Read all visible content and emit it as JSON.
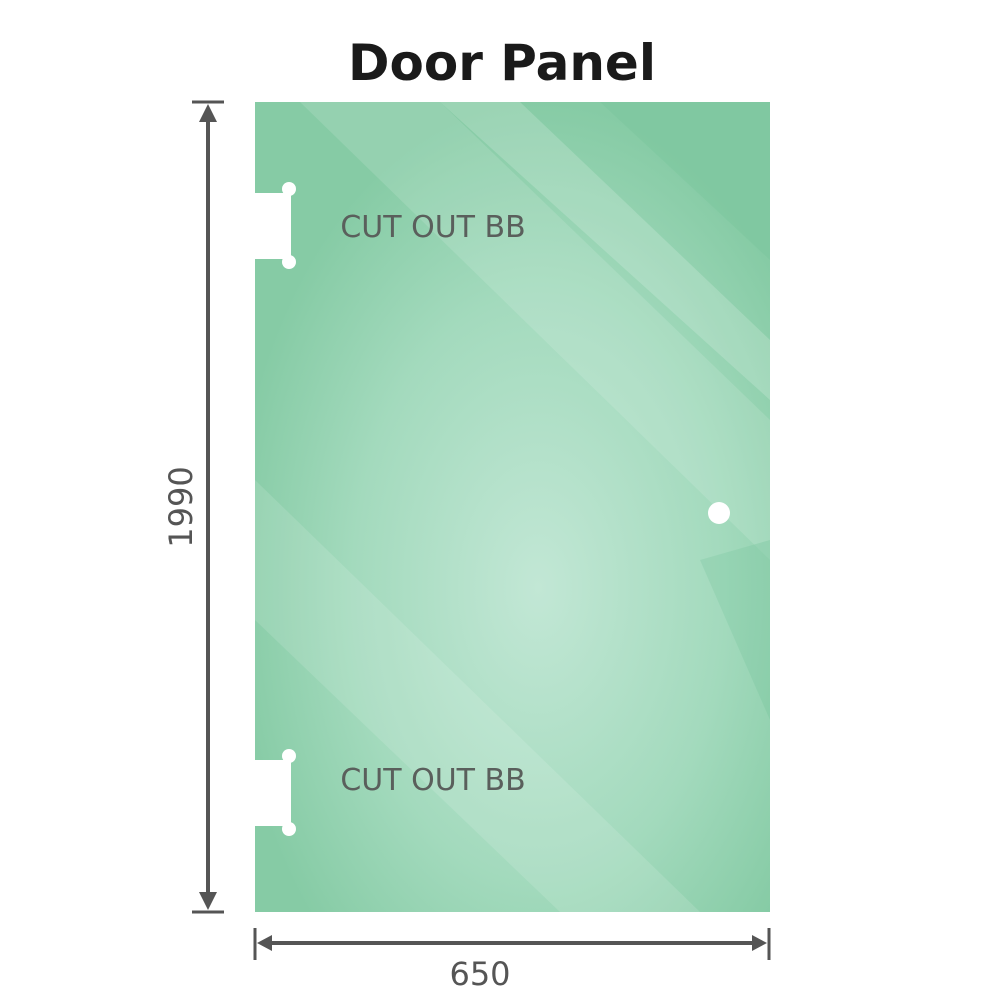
{
  "title": "Door Panel",
  "cutouts": [
    {
      "label": "CUT OUT BB"
    },
    {
      "label": "CUT OUT BB"
    }
  ],
  "dimensions": {
    "height": "1990",
    "width": "650"
  },
  "colors": {
    "glass": "#8ccfaa",
    "glass_light": "#bfe5d2",
    "dimension_line": "#555555"
  }
}
